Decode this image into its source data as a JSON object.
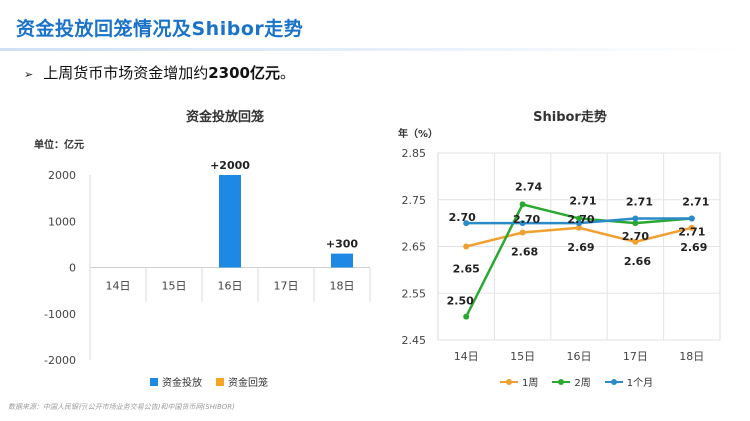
{
  "header": {
    "title": "资金投放回笼情况及Shibor走势",
    "bullet_arrow": "➢",
    "bullet_prefix": "上周货币市场资金增加约",
    "bullet_bold": "2300亿元",
    "bullet_suffix": "。"
  },
  "footer": {
    "source": "数据来源：中国人民银行(公开市场业务交易公告)和中国货币网(SHIBOR)"
  },
  "colors": {
    "title": "#1a73c9",
    "bar_injection": "#1e88e5",
    "bar_withdrawal": "#f5a623",
    "line_1w": "#f0a030",
    "line_2w": "#2aa832",
    "line_1m": "#2a8bc8"
  },
  "chart_data": [
    {
      "type": "bar",
      "title": "资金投放回笼",
      "unit_label": "单位：亿元",
      "categories": [
        "14日",
        "15日",
        "16日",
        "17日",
        "18日"
      ],
      "series": [
        {
          "name": "资金投放",
          "values": [
            0,
            0,
            2000,
            0,
            300
          ]
        },
        {
          "name": "资金回笼",
          "values": [
            0,
            0,
            0,
            0,
            0
          ]
        }
      ],
      "data_labels": [
        {
          "category": "16日",
          "text": "+2000"
        },
        {
          "category": "18日",
          "text": "+300"
        }
      ],
      "ylim": [
        -2000,
        2000
      ],
      "yticks": [
        2000,
        1000,
        0,
        -1000,
        -2000
      ],
      "ytick_labels": [
        "2000",
        "1000",
        "0",
        "-1000",
        "-2000"
      ],
      "legend_position": "bottom",
      "grid": false
    },
    {
      "type": "line",
      "title": "Shibor走势",
      "unit_label": "年（%）",
      "categories": [
        "14日",
        "15日",
        "16日",
        "17日",
        "18日"
      ],
      "series": [
        {
          "name": "1周",
          "values": [
            2.65,
            2.68,
            2.69,
            2.66,
            2.69
          ],
          "labels": [
            "2.65",
            "2.68",
            "2.69",
            "2.66",
            "2.69"
          ]
        },
        {
          "name": "2周",
          "values": [
            2.5,
            2.74,
            2.71,
            2.7,
            2.71
          ],
          "labels": [
            "2.50",
            "2.74",
            "2.71",
            "2.70",
            "2.71"
          ]
        },
        {
          "name": "1个月",
          "values": [
            2.7,
            2.7,
            2.7,
            2.71,
            2.71
          ],
          "labels": [
            "2.70",
            "2.70",
            "2.70",
            "2.71",
            "2.71"
          ]
        }
      ],
      "ylim": [
        2.45,
        2.85
      ],
      "yticks": [
        2.85,
        2.75,
        2.65,
        2.55,
        2.45
      ],
      "ytick_labels": [
        "2.85",
        "2.75",
        "2.65",
        "2.55",
        "2.45"
      ],
      "legend_position": "bottom",
      "grid": true
    }
  ]
}
